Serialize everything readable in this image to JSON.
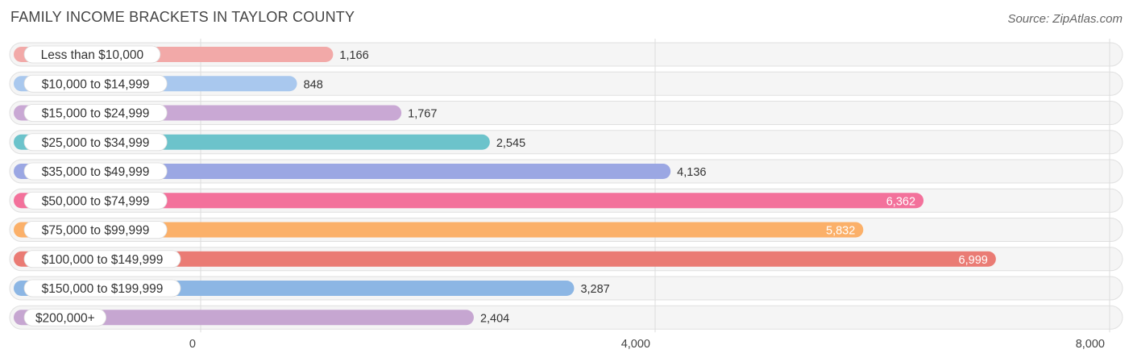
{
  "title": "FAMILY INCOME BRACKETS IN TAYLOR COUNTY",
  "source": "Source: ZipAtlas.com",
  "chart_data": {
    "type": "bar",
    "orientation": "horizontal",
    "title": "FAMILY INCOME BRACKETS IN TAYLOR COUNTY",
    "xlabel": "",
    "ylabel": "",
    "xlim": [
      0,
      8000
    ],
    "grid": true,
    "legend": "none",
    "ticks": [
      {
        "value": 0,
        "label": "0"
      },
      {
        "value": 4000,
        "label": "4,000"
      },
      {
        "value": 8000,
        "label": "8,000"
      }
    ],
    "categories": [
      "Less than $10,000",
      "$10,000 to $14,999",
      "$15,000 to $24,999",
      "$25,000 to $34,999",
      "$35,000 to $49,999",
      "$50,000 to $74,999",
      "$75,000 to $99,999",
      "$100,000 to $149,999",
      "$150,000 to $199,999",
      "$200,000+"
    ],
    "values": [
      1166,
      848,
      1767,
      2545,
      4136,
      6362,
      5832,
      6999,
      3287,
      2404
    ],
    "value_labels": [
      "1,166",
      "848",
      "1,767",
      "2,545",
      "4,136",
      "6,362",
      "5,832",
      "6,999",
      "3,287",
      "2,404"
    ],
    "colors": [
      "#f2a9a8",
      "#a9c8ee",
      "#c9a8d4",
      "#6cc3cb",
      "#9ba7e3",
      "#f3719b",
      "#fbb069",
      "#ea7b74",
      "#8cb6e4",
      "#c6a6d1"
    ]
  }
}
